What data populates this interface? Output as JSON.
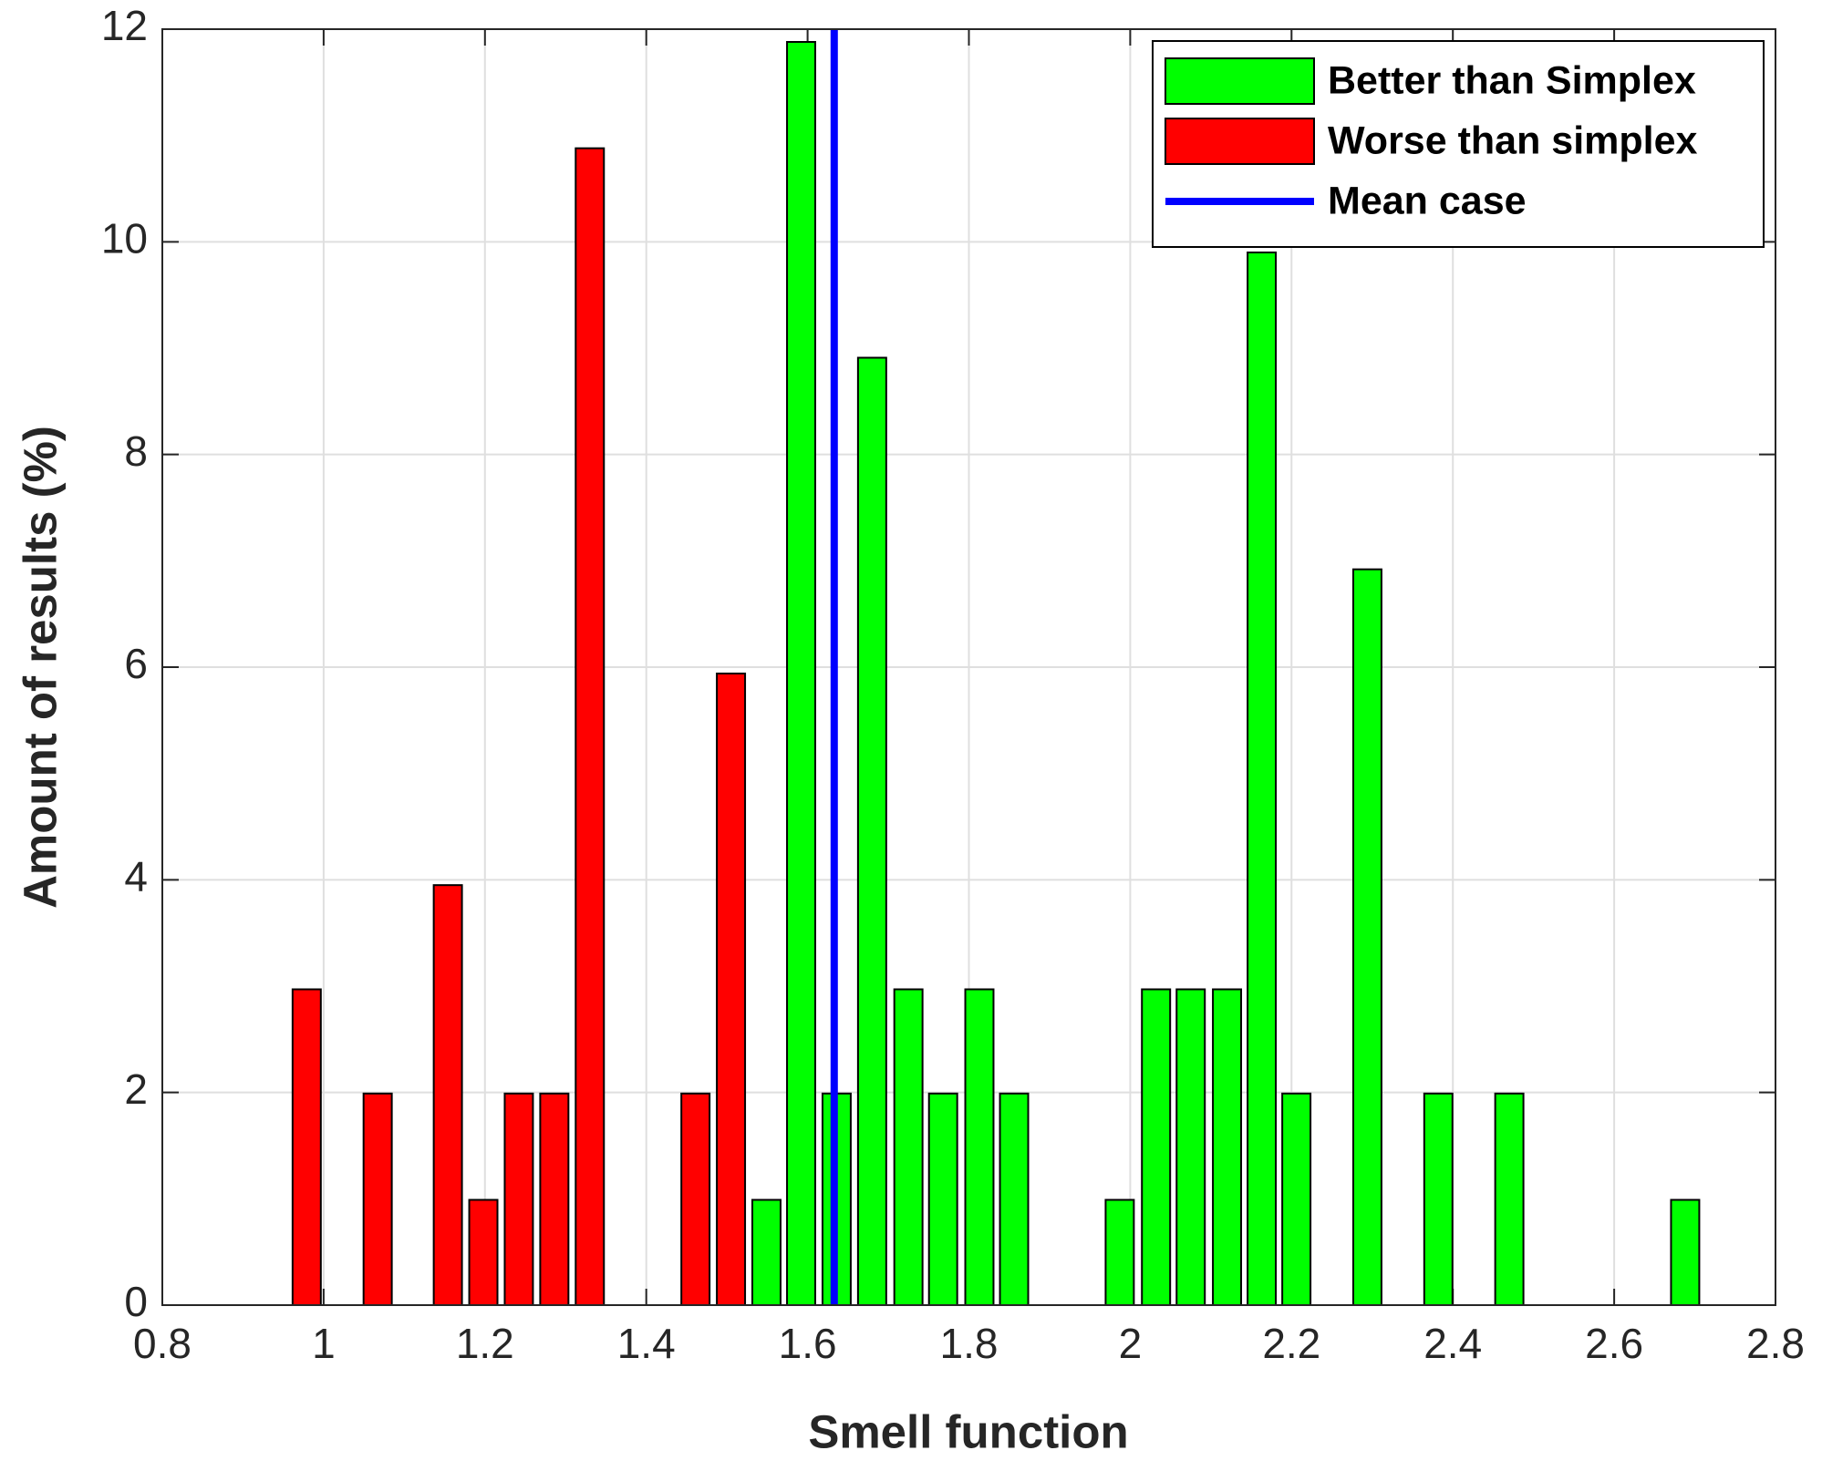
{
  "chart_data": {
    "type": "bar",
    "xlabel": "Smell function",
    "ylabel": "Amount of results (%)",
    "xlim": [
      0.8,
      2.8
    ],
    "ylim": [
      0,
      12
    ],
    "xticks": [
      0.8,
      1,
      1.2,
      1.4,
      1.6,
      1.8,
      2,
      2.2,
      2.4,
      2.6,
      2.8
    ],
    "yticks": [
      0,
      2,
      4,
      6,
      8,
      10,
      12
    ],
    "grid": true,
    "legend": "upper right",
    "series": [
      {
        "name": "Better than Simplex",
        "color": "#00ff00",
        "x": [
          1.549,
          1.592,
          1.636,
          1.68,
          1.725,
          1.768,
          1.813,
          1.856,
          1.987,
          2.032,
          2.075,
          2.12,
          2.163,
          2.206,
          2.294,
          2.382,
          2.47,
          2.688
        ],
        "values": [
          0.99,
          11.88,
          1.99,
          8.91,
          2.97,
          1.99,
          2.97,
          1.99,
          0.99,
          2.97,
          2.97,
          2.97,
          9.9,
          1.99,
          6.92,
          1.99,
          1.99,
          0.99
        ]
      },
      {
        "name": "Worse than simplex",
        "color": "#ff0000",
        "x": [
          0.979,
          1.067,
          1.154,
          1.198,
          1.242,
          1.286,
          1.33,
          1.461,
          1.505
        ],
        "values": [
          2.97,
          1.99,
          3.95,
          0.99,
          1.99,
          1.99,
          10.88,
          1.99,
          5.94
        ]
      },
      {
        "name": "Mean case",
        "color": "#0000ff",
        "type": "vline",
        "x": [
          1.633
        ]
      }
    ]
  }
}
